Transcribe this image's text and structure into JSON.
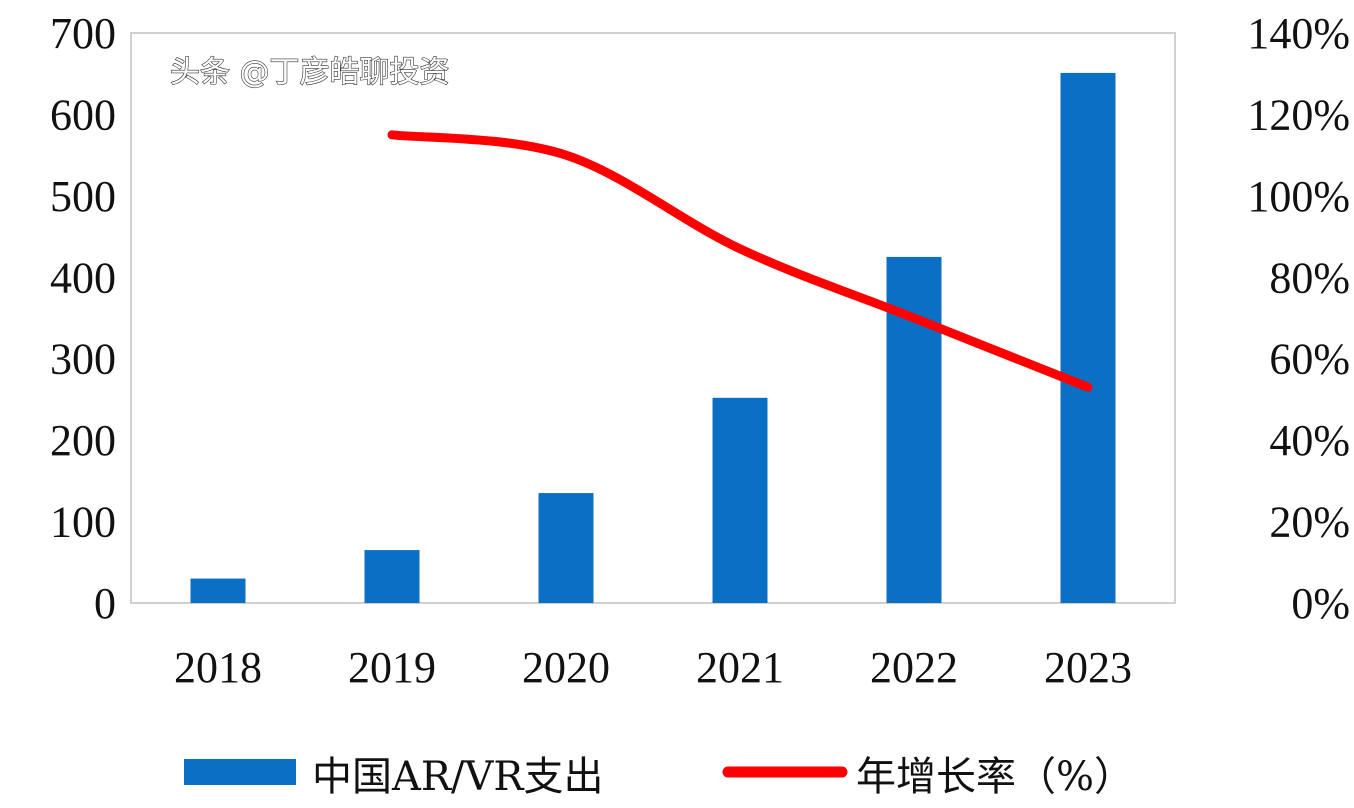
{
  "chart_data": {
    "type": "bar+line",
    "categories": [
      "2018",
      "2019",
      "2020",
      "2021",
      "2022",
      "2023"
    ],
    "series": [
      {
        "name": "中国AR/VR支出",
        "type": "bar",
        "axis": "left",
        "color": "#0b6fc6",
        "values": [
          30,
          65,
          135,
          252,
          425,
          651
        ]
      },
      {
        "name": "年增长率（%）",
        "type": "line",
        "axis": "right",
        "color": "#ff0000",
        "values": [
          null,
          115,
          110,
          87,
          70,
          53
        ]
      }
    ],
    "y_left": {
      "ylim": [
        0,
        700
      ],
      "ticks": [
        "0",
        "100",
        "200",
        "300",
        "400",
        "500",
        "600",
        "700"
      ]
    },
    "y_right": {
      "ylim": [
        0,
        140
      ],
      "ticks": [
        "0%",
        "20%",
        "40%",
        "60%",
        "80%",
        "100%",
        "120%",
        "140%"
      ]
    },
    "grid": false,
    "legend_placement": "bottom"
  },
  "watermark": "头条 @丁彦皓聊投资"
}
